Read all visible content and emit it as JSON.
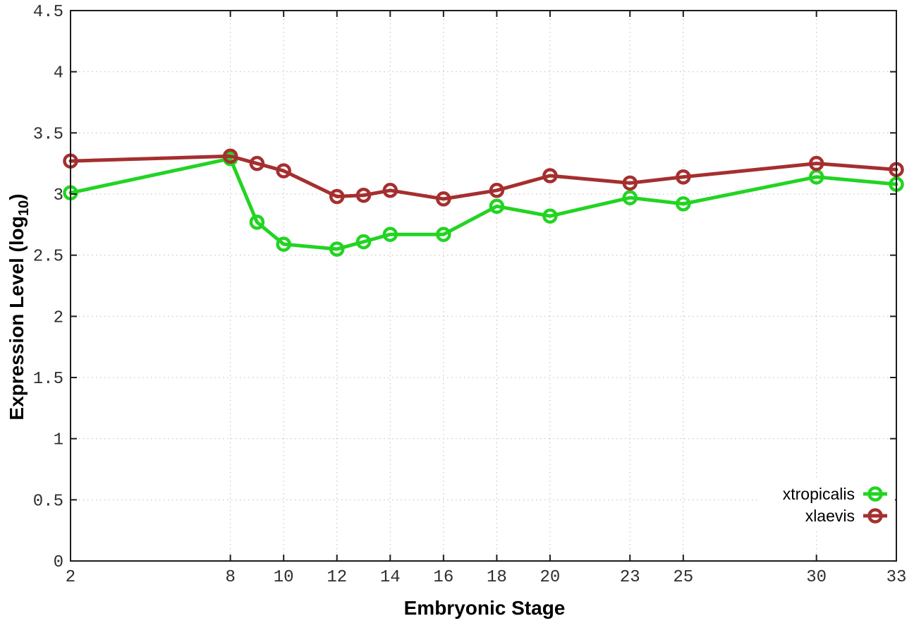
{
  "chart_data": {
    "type": "line",
    "title": "",
    "xlabel": "Embryonic Stage",
    "ylabel": "Expression Level (log10)",
    "ylabel_prefix": "Expression Level (log",
    "ylabel_sub": "10",
    "ylabel_suffix": ")",
    "x": [
      2,
      8,
      9,
      10,
      12,
      13,
      14,
      16,
      18,
      20,
      23,
      25,
      30,
      33
    ],
    "series": [
      {
        "name": "xtropicalis",
        "color": "#22d422",
        "values": [
          3.01,
          3.29,
          2.77,
          2.59,
          2.55,
          2.61,
          2.67,
          2.67,
          2.9,
          2.82,
          2.97,
          2.92,
          3.14,
          3.08
        ]
      },
      {
        "name": "xlaevis",
        "color": "#a52f2f",
        "values": [
          3.27,
          3.31,
          3.25,
          3.19,
          2.98,
          2.99,
          3.03,
          2.96,
          3.03,
          3.15,
          3.09,
          3.14,
          3.25,
          3.2
        ]
      }
    ],
    "xlim": [
      2,
      33
    ],
    "ylim": [
      0,
      4.5
    ],
    "xticks": [
      2,
      8,
      10,
      12,
      14,
      16,
      18,
      20,
      23,
      25,
      30,
      33
    ],
    "yticks": [
      0,
      0.5,
      1,
      1.5,
      2,
      2.5,
      3,
      3.5,
      4,
      4.5
    ],
    "grid": true,
    "grid_color": "#bcbcbc",
    "border_color": "#1c1c1c",
    "tick_label_color": "#2e2e2e",
    "legend_position": "bottom-right",
    "legend_entries": [
      "xtropicalis",
      "xlaevis"
    ]
  }
}
